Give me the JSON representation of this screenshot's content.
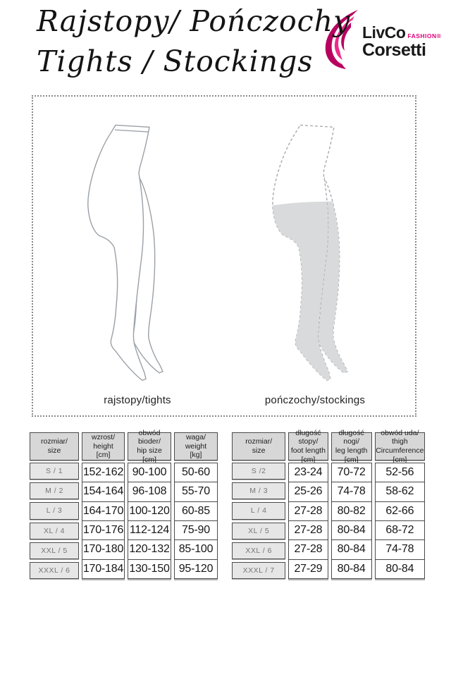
{
  "header": {
    "title_line1": "Rajstopy/ Pończochy",
    "title_line2": "Tights / Stockings",
    "logo": {
      "brand_top": "LivCo",
      "brand_fashion": "FASHION®",
      "brand_bottom": "Corsetti",
      "accent_color": "#e2007b",
      "swirl_dark": "#b8005f",
      "swirl_bright": "#ee2a8b"
    }
  },
  "figures": {
    "left_label": "rajstopy/tights",
    "right_label": "pończochy/stockings",
    "outline_color": "#9aa0a6",
    "stocking_fill": "#d8dadb"
  },
  "tables": [
    {
      "name": "tights-size-table",
      "columns": [
        {
          "header": "rozmiar/\nsize",
          "type": "size",
          "values": [
            "S / 1",
            "M / 2",
            "L / 3",
            "XL / 4",
            "XXL / 5",
            "XXXL / 6"
          ]
        },
        {
          "header": "wzrost/\nheight\n[cm]",
          "values": [
            "152-162",
            "154-164",
            "164-170",
            "170-176",
            "170-180",
            "170-184"
          ]
        },
        {
          "header": "obwód bioder/\nhip size\n[cm]",
          "values": [
            "90-100",
            "96-108",
            "100-120",
            "112-124",
            "120-132",
            "130-150"
          ]
        },
        {
          "header": "waga/\nweight\n[kg]",
          "values": [
            "50-60",
            "55-70",
            "60-85",
            "75-90",
            "85-100",
            "95-120"
          ]
        }
      ]
    },
    {
      "name": "stockings-size-table",
      "columns": [
        {
          "header": "rozmiar/\nsize",
          "type": "size",
          "values": [
            "S /2",
            "M / 3",
            "L / 4",
            "XL / 5",
            "XXL / 6",
            "XXXL / 7"
          ]
        },
        {
          "header": "długość stopy/\nfoot length\n[cm]",
          "values": [
            "23-24",
            "25-26",
            "27-28",
            "27-28",
            "27-28",
            "27-29"
          ]
        },
        {
          "header": "długość nogi/\nleg length\n[cm]",
          "values": [
            "70-72",
            "74-78",
            "80-82",
            "80-84",
            "80-84",
            "80-84"
          ]
        },
        {
          "header": "obwód uda/\nthigh\nCircumference\n[cm]",
          "values": [
            "52-56",
            "58-62",
            "62-66",
            "68-72",
            "74-78",
            "80-84"
          ]
        }
      ]
    }
  ]
}
